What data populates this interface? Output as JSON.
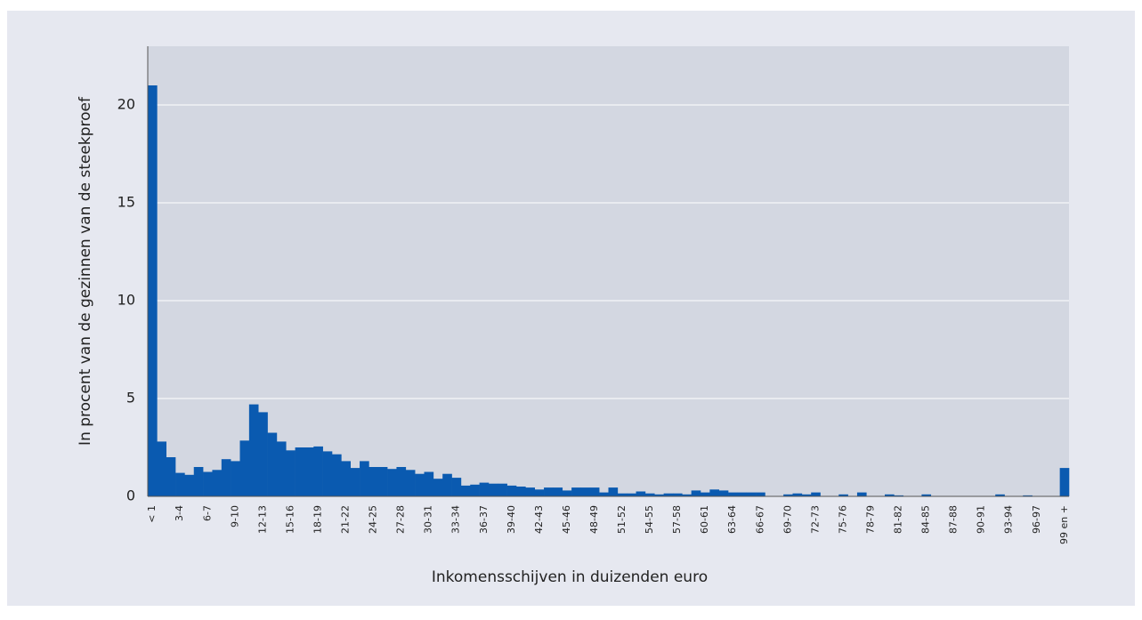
{
  "chart_data": {
    "type": "bar",
    "xlabel": "Inkomensschijven in duizenden euro",
    "ylabel": "In procent van de gezinnen van de steekproef",
    "categories": [
      "< 1",
      null,
      null,
      "3-4",
      null,
      null,
      "6-7",
      null,
      null,
      "9-10",
      null,
      null,
      "12-13",
      null,
      null,
      "15-16",
      null,
      null,
      "18-19",
      null,
      null,
      "21-22",
      null,
      null,
      "24-25",
      null,
      null,
      "27-28",
      null,
      null,
      "30-31",
      null,
      null,
      "33-34",
      null,
      null,
      "36-37",
      null,
      null,
      "39-40",
      null,
      null,
      "42-43",
      null,
      null,
      "45-46",
      null,
      null,
      "48-49",
      null,
      null,
      "51-52",
      null,
      null,
      "54-55",
      null,
      null,
      "57-58",
      null,
      null,
      "60-61",
      null,
      null,
      "63-64",
      null,
      null,
      "66-67",
      null,
      null,
      "69-70",
      null,
      null,
      "72-73",
      null,
      null,
      "75-76",
      null,
      null,
      "78-79",
      null,
      null,
      "81-82",
      null,
      null,
      "84-85",
      null,
      null,
      "87-88",
      null,
      null,
      "90-91",
      null,
      null,
      "93-94",
      null,
      null,
      "96-97",
      null,
      null,
      "99 en +"
    ],
    "values": [
      21,
      2.8,
      2.0,
      1.2,
      1.1,
      1.5,
      1.25,
      1.35,
      1.9,
      1.8,
      2.85,
      4.7,
      4.3,
      3.25,
      2.8,
      2.35,
      2.5,
      2.5,
      2.55,
      2.3,
      2.15,
      1.8,
      1.45,
      1.8,
      1.5,
      1.5,
      1.4,
      1.5,
      1.35,
      1.15,
      1.25,
      0.9,
      1.15,
      0.95,
      0.55,
      0.6,
      0.7,
      0.65,
      0.65,
      0.55,
      0.5,
      0.45,
      0.35,
      0.45,
      0.45,
      0.3,
      0.45,
      0.45,
      0.45,
      0.2,
      0.45,
      0.15,
      0.15,
      0.25,
      0.15,
      0.1,
      0.15,
      0.15,
      0.1,
      0.3,
      0.2,
      0.35,
      0.3,
      0.2,
      0.2,
      0.2,
      0.2,
      0,
      0,
      0.1,
      0.15,
      0.1,
      0.2,
      0,
      0,
      0.1,
      0,
      0.2,
      0,
      0,
      0.1,
      0.05,
      0,
      0,
      0.1,
      0,
      0.02,
      0.02,
      0.02,
      0.02,
      0.02,
      0,
      0.1,
      0,
      0,
      0.05,
      0,
      0,
      0,
      1.45
    ],
    "color": "#0a5ab0",
    "ylim": [
      0,
      23
    ],
    "yticks": [
      0,
      5,
      10,
      15,
      20
    ],
    "grid": true
  }
}
